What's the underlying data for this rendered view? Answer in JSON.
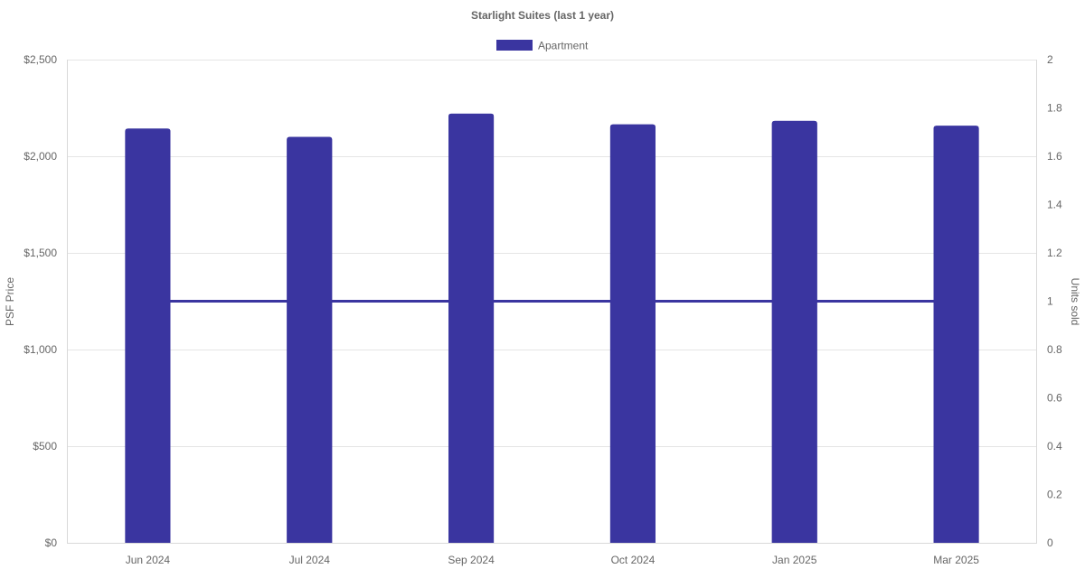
{
  "chart_data": {
    "type": "bar",
    "title": "Starlight Suites (last 1 year)",
    "categories": [
      "Jun 2024",
      "Jul 2024",
      "Sep 2024",
      "Oct 2024",
      "Jan 2025",
      "Mar 2025"
    ],
    "series": [
      {
        "name": "Apartment",
        "type": "bar",
        "axis": "left",
        "values": [
          2143,
          2100,
          2220,
          2165,
          2183,
          2158
        ]
      },
      {
        "type": "line",
        "axis": "right",
        "values": [
          1,
          1,
          1,
          1,
          1,
          1
        ]
      }
    ],
    "ylabel": "PSF Price",
    "y2label": "Units sold",
    "ylim": [
      0,
      2500
    ],
    "y2lim": [
      0,
      2
    ],
    "yticks": [
      "$0",
      "$500",
      "$1,000",
      "$1,500",
      "$2,000",
      "$2,500"
    ],
    "y2ticks": [
      "0",
      "0.2",
      "0.4",
      "0.6",
      "0.8",
      "1",
      "1.2",
      "1.4",
      "1.6",
      "1.8",
      "2"
    ],
    "legend_position": "top",
    "grid": true,
    "colors": {
      "bar": "#3a35a0",
      "line": "#3a35a0"
    }
  }
}
